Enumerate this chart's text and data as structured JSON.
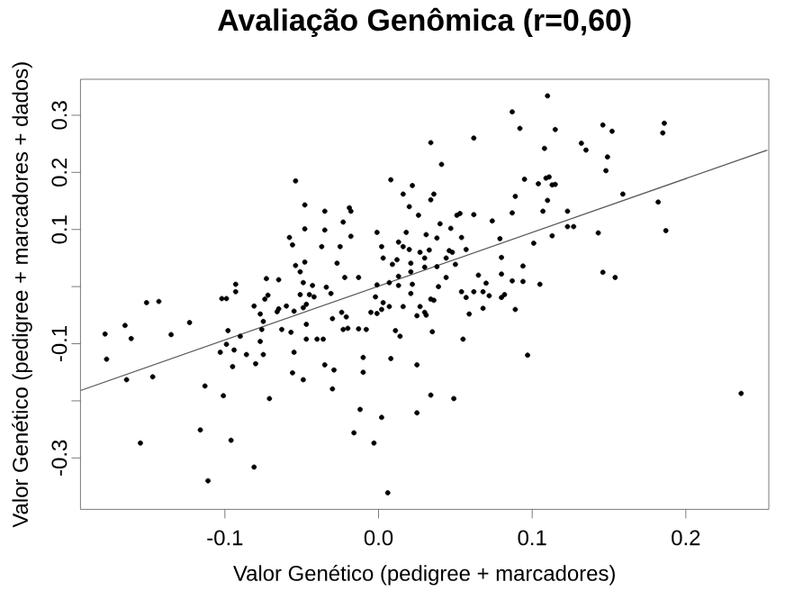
{
  "chart_data": {
    "type": "scatter",
    "title": "Avaliação Genômica (r=0,60)",
    "xlabel": "Valor Genético (pedigree + marcadores)",
    "ylabel": "Valor Genético (pedigree + marcadores + dados)",
    "xlim": [
      -0.194,
      0.254
    ],
    "ylim": [
      -0.39,
      0.363
    ],
    "xticks": [
      -0.1,
      {
        "value": 0,
        "label": "0.0"
      },
      0.1,
      0.2
    ],
    "yticks": [
      -0.3,
      {
        "value": -0.2,
        "label": null
      },
      -0.1,
      {
        "value": 0,
        "label": null
      },
      0.1,
      0.2,
      0.3
    ],
    "series": [
      {
        "color": "#000000",
        "marker": "circle",
        "x": [
          -0.054,
          0.008,
          -0.048,
          -0.048,
          -0.035,
          -0.019,
          -0.018,
          -0.023,
          -0.001,
          -0.035,
          -0.018,
          -0.025,
          -0.037,
          -0.058,
          -0.056,
          -0.054,
          -0.051,
          -0.048,
          -0.027,
          -0.022,
          -0.013,
          -0.073,
          -0.065,
          0.003,
          0.002,
          0.009,
          -0.093,
          -0.049,
          -0.043,
          -0.034,
          -0.001,
          0.007,
          0.11,
          0.087,
          0.092,
          0.115,
          0.146,
          0.152,
          0.186,
          0.185,
          0.034,
          0.062,
          0.132,
          0.135,
          0.108,
          0.149,
          0.148,
          0.041,
          0.095,
          0.104,
          0.109,
          0.111,
          0.113,
          0.115,
          0.022,
          0.016,
          0.036,
          0.034,
          0.089,
          0.11,
          0.159,
          0.182,
          0.02,
          0.026,
          0.087,
          0.107,
          0.123,
          0.051,
          0.053,
          0.062,
          0.074,
          0.04,
          0.047,
          0.123,
          0.127,
          0.143,
          0.187,
          0.113,
          0.018,
          0.031,
          0.038,
          0.054,
          0.079,
          0.101,
          0.013,
          0.016,
          0.02,
          0.027,
          0.033,
          0.046,
          0.048,
          0.057,
          0.03,
          0.044,
          0.012,
          0.021,
          0.08,
          0.038,
          0.05,
          0.094,
          0.03,
          0.021,
          0.044,
          0.08,
          0.146,
          0.154,
          0.013,
          0.065,
          0.07,
          0.087,
          0.094,
          0.105,
          0.022,
          0.039,
          0.013,
          0.021,
          0.034,
          0.036,
          0.054,
          0.057,
          0.062,
          0.068,
          0.072,
          0.08,
          0.082,
          0.016,
          0.027,
          0.025,
          0.03,
          0.031,
          0.011,
          0.014,
          0.035,
          0.059,
          0.068,
          0.089,
          0.055,
          0.097,
          0.025,
          0.034,
          0.049,
          0.025,
          0.236,
          -0.178,
          -0.177,
          -0.165,
          -0.161,
          -0.164,
          -0.151,
          -0.143,
          -0.147,
          -0.135,
          -0.123,
          -0.155,
          -0.113,
          -0.116,
          -0.111,
          -0.102,
          -0.099,
          -0.098,
          -0.099,
          -0.103,
          -0.094,
          -0.095,
          -0.101,
          -0.096,
          -0.093,
          -0.09,
          -0.086,
          -0.081,
          -0.08,
          -0.077,
          -0.076,
          -0.077,
          -0.075,
          -0.075,
          -0.071,
          -0.081,
          -0.074,
          -0.072,
          -0.066,
          -0.065,
          -0.063,
          -0.057,
          -0.06,
          -0.055,
          -0.051,
          -0.049,
          -0.047,
          -0.045,
          -0.042,
          -0.055,
          -0.056,
          -0.049,
          -0.047,
          -0.047,
          -0.04,
          -0.036,
          -0.035,
          -0.029,
          -0.03,
          -0.03,
          -0.031,
          -0.024,
          -0.021,
          -0.02,
          -0.023,
          -0.016,
          -0.012,
          -0.01,
          -0.01,
          -0.008,
          -0.013,
          -0.005,
          -0.002,
          0.002,
          -0.001,
          0.003,
          0.007,
          0.008,
          0.002,
          -0.003,
          0.006
        ],
        "values": [
          0.185,
          0.187,
          0.143,
          0.101,
          0.132,
          0.138,
          0.132,
          0.113,
          0.095,
          0.099,
          0.088,
          0.07,
          0.07,
          0.086,
          0.073,
          0.037,
          0.026,
          0.043,
          0.041,
          0.016,
          0.016,
          0.014,
          0.012,
          0.05,
          0.07,
          0.039,
          0.004,
          0.007,
          0.002,
          -0.001,
          0.003,
          0.007,
          0.334,
          0.306,
          0.277,
          0.275,
          0.283,
          0.272,
          0.286,
          0.269,
          0.252,
          0.26,
          0.251,
          0.239,
          0.242,
          0.227,
          0.203,
          0.214,
          0.188,
          0.18,
          0.19,
          0.192,
          0.178,
          0.179,
          0.177,
          0.162,
          0.162,
          0.152,
          0.158,
          0.151,
          0.162,
          0.148,
          0.14,
          0.125,
          0.129,
          0.132,
          0.132,
          0.125,
          0.128,
          0.126,
          0.115,
          0.11,
          0.102,
          0.105,
          0.105,
          0.094,
          0.098,
          0.089,
          0.095,
          0.091,
          0.085,
          0.086,
          0.084,
          0.076,
          0.078,
          0.07,
          0.065,
          0.06,
          0.064,
          0.063,
          0.06,
          0.065,
          0.05,
          0.05,
          0.047,
          0.041,
          0.051,
          0.035,
          0.039,
          0.036,
          0.034,
          0.026,
          0.016,
          0.022,
          0.025,
          0.016,
          0.018,
          0.02,
          0.006,
          0.01,
          0.009,
          0.004,
          0.004,
          0.0,
          0.002,
          -0.012,
          -0.022,
          -0.024,
          -0.009,
          -0.019,
          -0.009,
          -0.009,
          -0.016,
          -0.019,
          -0.014,
          -0.035,
          -0.035,
          -0.051,
          -0.045,
          -0.05,
          -0.077,
          -0.087,
          -0.079,
          -0.048,
          -0.038,
          -0.04,
          -0.092,
          -0.12,
          -0.137,
          -0.19,
          -0.196,
          -0.221,
          -0.187,
          -0.083,
          -0.127,
          -0.068,
          -0.091,
          -0.163,
          -0.028,
          -0.026,
          -0.158,
          -0.084,
          -0.063,
          -0.274,
          -0.174,
          -0.251,
          -0.34,
          -0.021,
          -0.021,
          -0.077,
          -0.101,
          -0.115,
          -0.111,
          -0.14,
          -0.191,
          -0.269,
          -0.009,
          -0.087,
          -0.119,
          -0.034,
          -0.135,
          -0.048,
          -0.075,
          -0.096,
          -0.119,
          -0.061,
          -0.196,
          -0.316,
          -0.022,
          -0.015,
          -0.044,
          -0.039,
          -0.075,
          -0.08,
          -0.034,
          -0.043,
          -0.014,
          -0.037,
          -0.031,
          -0.014,
          -0.018,
          -0.115,
          -0.151,
          -0.163,
          -0.092,
          -0.066,
          -0.092,
          -0.092,
          -0.137,
          -0.146,
          -0.179,
          -0.056,
          -0.012,
          -0.045,
          -0.053,
          -0.073,
          -0.075,
          -0.256,
          -0.215,
          -0.124,
          -0.15,
          -0.075,
          -0.074,
          -0.045,
          -0.018,
          -0.04,
          -0.047,
          -0.028,
          -0.035,
          -0.126,
          -0.229,
          -0.274,
          -0.361
        ]
      },
      {
        "type": "line",
        "color": "#555555",
        "marker": "none",
        "line_style": "solid",
        "x": [
          -0.194,
          0.253
        ],
        "values": [
          -0.182,
          0.239
        ]
      }
    ]
  }
}
